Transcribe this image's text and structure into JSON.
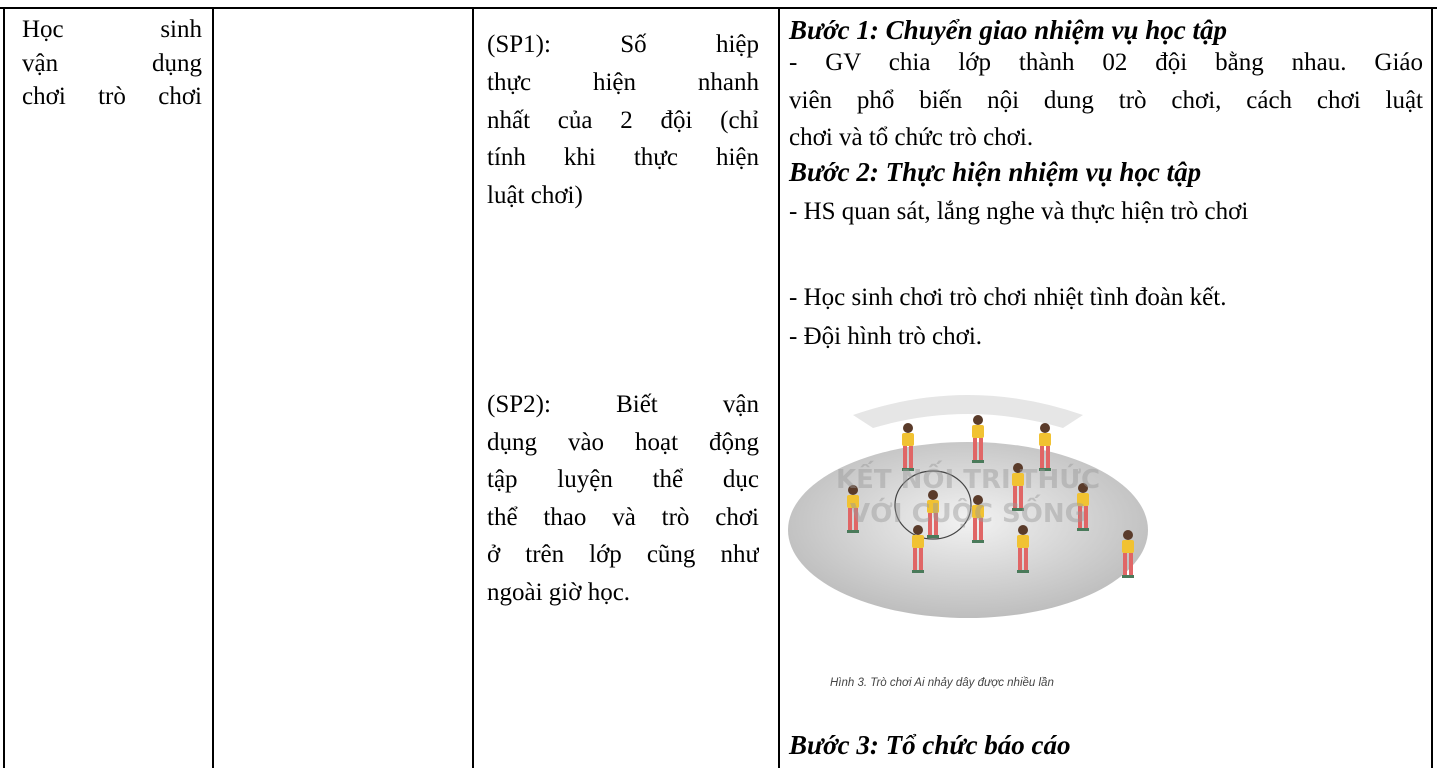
{
  "activity": [
    "Học sinh",
    "vận dụng",
    "chơi trò chơi"
  ],
  "products": [
    [
      "(SP1): Số hiệp",
      "thực hiện nhanh",
      "nhất của 2 đội (chỉ",
      "tính khi thực hiện",
      "luật chơi)"
    ],
    [
      "(SP2): Biết vận",
      "dụng vào hoạt động",
      "tập luyện thể dục",
      "thể thao và trò chơi",
      "ở trên lớp cũng như",
      "ngoài giờ học."
    ]
  ],
  "steps": {
    "step1_title": "Bước 1: Chuyển giao nhiệm vụ học tập",
    "step1_text": [
      "- GV chia lớp thành 02 đội bằng nhau. Giáo",
      "viên phổ biến nội dung trò chơi, cách chơi luật",
      "chơi và tổ chức trò chơi."
    ],
    "step2_title": "Bước 2: Thực hiện nhiệm vụ học tập",
    "step2_text": [
      "- HS quan sát, lắng nghe và thực hiện trò chơi",
      "-  Học sinh chơi trò chơi nhiệt tình đoàn kết.",
      "- Đội hình trò chơi."
    ],
    "figure": {
      "watermark": [
        "KẾT NỐI TRI THỨC",
        "VỚI CUỘC SỐNG"
      ],
      "caption": "Hình 3. Trò chơi Ai nhảy dây được nhiều lần"
    },
    "step3_title": "Bước 3: Tổ chức báo cáo"
  }
}
